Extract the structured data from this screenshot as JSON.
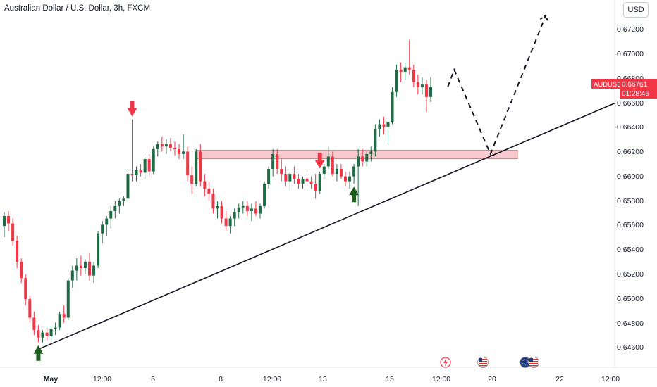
{
  "header": {
    "title": "Australian Dollar / U.S. Dollar, 3h, FXCM",
    "currency_button": "USD"
  },
  "price_tag": {
    "symbol": "AUDUSD",
    "price": "0.66761",
    "countdown": "01:28:46",
    "bg_color": "#f23645"
  },
  "colors": {
    "up": "#1f6b45",
    "down": "#f23645",
    "zone_fill": "#f4b7bd",
    "zone_border": "#e57373",
    "arrow_down": "#f23645",
    "arrow_up": "#1b5e20"
  },
  "event_icons": [
    "flash-icon",
    "us-flag-icon",
    "eu-us-flags-icon"
  ],
  "chart_data": {
    "type": "candlestick",
    "title": "Australian Dollar / U.S. Dollar, 3h, FXCM",
    "y_axis": {
      "range": [
        0.645,
        0.6736
      ],
      "ticks": [
        "0.64600",
        "0.64800",
        "0.65000",
        "0.65200",
        "0.65400",
        "0.65600",
        "0.65800",
        "0.66000",
        "0.66200",
        "0.66400",
        "0.66600",
        "0.66800",
        "0.67000",
        "0.67200"
      ]
    },
    "x_axis": {
      "ticks": [
        "May",
        "12:00",
        "6",
        "12:00",
        "8",
        "12:00",
        "13",
        "12:00",
        "15",
        "12:00",
        "20",
        "22",
        "12:00"
      ]
    },
    "candles": [
      [
        0.6564,
        0.6575,
        0.6555,
        0.6572
      ],
      [
        0.6572,
        0.6576,
        0.656,
        0.6566
      ],
      [
        0.6566,
        0.657,
        0.6548,
        0.6552
      ],
      [
        0.6552,
        0.6556,
        0.653,
        0.6535
      ],
      [
        0.6535,
        0.6538,
        0.6518,
        0.6522
      ],
      [
        0.6522,
        0.6525,
        0.65,
        0.6505
      ],
      [
        0.6505,
        0.6508,
        0.6486,
        0.649
      ],
      [
        0.649,
        0.6495,
        0.6476,
        0.648
      ],
      [
        0.648,
        0.6484,
        0.647,
        0.6474
      ],
      [
        0.6474,
        0.648,
        0.647,
        0.6478
      ],
      [
        0.6478,
        0.6482,
        0.6472,
        0.6475
      ],
      [
        0.6475,
        0.6483,
        0.6472,
        0.6481
      ],
      [
        0.6481,
        0.6486,
        0.6476,
        0.6482
      ],
      [
        0.6482,
        0.6495,
        0.648,
        0.6493
      ],
      [
        0.6493,
        0.65,
        0.6486,
        0.649
      ],
      [
        0.649,
        0.6522,
        0.6488,
        0.652
      ],
      [
        0.652,
        0.6532,
        0.6514,
        0.6528
      ],
      [
        0.6528,
        0.6538,
        0.652,
        0.6532
      ],
      [
        0.6532,
        0.654,
        0.6524,
        0.653
      ],
      [
        0.653,
        0.6537,
        0.6525,
        0.6535
      ],
      [
        0.6535,
        0.6542,
        0.652,
        0.6524
      ],
      [
        0.6524,
        0.6535,
        0.6518,
        0.6532
      ],
      [
        0.6532,
        0.656,
        0.653,
        0.6558
      ],
      [
        0.6558,
        0.6568,
        0.655,
        0.6565
      ],
      [
        0.6565,
        0.6572,
        0.6556,
        0.657
      ],
      [
        0.657,
        0.658,
        0.6562,
        0.6576
      ],
      [
        0.6576,
        0.6584,
        0.657,
        0.658
      ],
      [
        0.658,
        0.6586,
        0.6574,
        0.6584
      ],
      [
        0.6584,
        0.6588,
        0.658,
        0.6586
      ],
      [
        0.6586,
        0.661,
        0.6584,
        0.6606
      ],
      [
        0.6606,
        0.665,
        0.66,
        0.6605
      ],
      [
        0.6605,
        0.6612,
        0.66,
        0.6609
      ],
      [
        0.6609,
        0.6614,
        0.6604,
        0.6607
      ],
      [
        0.6607,
        0.662,
        0.6602,
        0.6618
      ],
      [
        0.6618,
        0.6622,
        0.6604,
        0.6608
      ],
      [
        0.6608,
        0.6628,
        0.6606,
        0.6626
      ],
      [
        0.6626,
        0.6632,
        0.662,
        0.663
      ],
      [
        0.663,
        0.6636,
        0.6624,
        0.6628
      ],
      [
        0.6628,
        0.6634,
        0.6622,
        0.663
      ],
      [
        0.663,
        0.6635,
        0.6624,
        0.6627
      ],
      [
        0.6627,
        0.6632,
        0.6621,
        0.6626
      ],
      [
        0.6626,
        0.663,
        0.6618,
        0.6622
      ],
      [
        0.6622,
        0.6638,
        0.6618,
        0.6624
      ],
      [
        0.6624,
        0.6628,
        0.66,
        0.6605
      ],
      [
        0.6605,
        0.6612,
        0.659,
        0.6598
      ],
      [
        0.6598,
        0.6626,
        0.6596,
        0.6624
      ],
      [
        0.6624,
        0.663,
        0.6596,
        0.66
      ],
      [
        0.66,
        0.6606,
        0.6588,
        0.6594
      ],
      [
        0.6594,
        0.66,
        0.6584,
        0.659
      ],
      [
        0.659,
        0.6594,
        0.6574,
        0.6578
      ],
      [
        0.6578,
        0.6584,
        0.657,
        0.658
      ],
      [
        0.658,
        0.6584,
        0.6566,
        0.657
      ],
      [
        0.657,
        0.6576,
        0.656,
        0.6564
      ],
      [
        0.6564,
        0.6572,
        0.6558,
        0.657
      ],
      [
        0.657,
        0.6578,
        0.6564,
        0.6575
      ],
      [
        0.6575,
        0.6582,
        0.657,
        0.6579
      ],
      [
        0.6579,
        0.6584,
        0.6574,
        0.658
      ],
      [
        0.658,
        0.6584,
        0.6572,
        0.6576
      ],
      [
        0.6576,
        0.6582,
        0.6568,
        0.6578
      ],
      [
        0.6578,
        0.6584,
        0.6572,
        0.6574
      ],
      [
        0.6574,
        0.6582,
        0.657,
        0.658
      ],
      [
        0.658,
        0.66,
        0.6578,
        0.6598
      ],
      [
        0.6598,
        0.6612,
        0.6594,
        0.661
      ],
      [
        0.661,
        0.6626,
        0.6604,
        0.6622
      ],
      [
        0.6622,
        0.6626,
        0.6606,
        0.661
      ],
      [
        0.661,
        0.6618,
        0.66,
        0.6606
      ],
      [
        0.6606,
        0.6612,
        0.6596,
        0.66
      ],
      [
        0.66,
        0.6608,
        0.6592,
        0.6606
      ],
      [
        0.6606,
        0.6612,
        0.6598,
        0.6602
      ],
      [
        0.6602,
        0.6606,
        0.6594,
        0.6598
      ],
      [
        0.6598,
        0.6604,
        0.6594,
        0.6602
      ],
      [
        0.6602,
        0.6606,
        0.6596,
        0.66
      ],
      [
        0.66,
        0.6604,
        0.6594,
        0.6598
      ],
      [
        0.6598,
        0.6606,
        0.6586,
        0.6592
      ],
      [
        0.6592,
        0.6608,
        0.659,
        0.6606
      ],
      [
        0.6606,
        0.6614,
        0.6602,
        0.6612
      ],
      [
        0.6612,
        0.6628,
        0.661,
        0.662
      ],
      [
        0.662,
        0.6624,
        0.6604,
        0.6606
      ],
      [
        0.6606,
        0.6614,
        0.66,
        0.661
      ],
      [
        0.661,
        0.6614,
        0.6602,
        0.6604
      ],
      [
        0.6604,
        0.6608,
        0.6596,
        0.66
      ],
      [
        0.66,
        0.6608,
        0.6594,
        0.6604
      ],
      [
        0.6604,
        0.6614,
        0.6598,
        0.6612
      ],
      [
        0.6612,
        0.6626,
        0.658,
        0.662
      ],
      [
        0.662,
        0.6626,
        0.6612,
        0.6616
      ],
      [
        0.6616,
        0.6624,
        0.6612,
        0.6622
      ],
      [
        0.6622,
        0.6628,
        0.6616,
        0.6624
      ],
      [
        0.6624,
        0.6646,
        0.662,
        0.6642
      ],
      [
        0.6642,
        0.665,
        0.6636,
        0.6646
      ],
      [
        0.6646,
        0.6652,
        0.6638,
        0.6644
      ],
      [
        0.6644,
        0.665,
        0.6632,
        0.6648
      ],
      [
        0.6648,
        0.6676,
        0.6646,
        0.6672
      ],
      [
        0.6672,
        0.6694,
        0.6668,
        0.669
      ],
      [
        0.669,
        0.6696,
        0.668,
        0.6688
      ],
      [
        0.6688,
        0.6696,
        0.6682,
        0.6692
      ],
      [
        0.6692,
        0.6714,
        0.6686,
        0.669
      ],
      [
        0.669,
        0.6694,
        0.6676,
        0.668
      ],
      [
        0.668,
        0.6686,
        0.667,
        0.6676
      ],
      [
        0.6676,
        0.6684,
        0.667,
        0.6678
      ],
      [
        0.6678,
        0.6682,
        0.6656,
        0.6668
      ],
      [
        0.6668,
        0.6684,
        0.6664,
        0.6676
      ]
    ],
    "support_zone": {
      "low": 0.6619,
      "high": 0.6625
    },
    "trendline": {
      "from_candle": 8,
      "from_price": 0.6465,
      "to_price": 0.6663
    },
    "projection_path": [
      {
        "candle": 104,
        "price": 0.66761
      },
      {
        "candle": 105.5,
        "price": 0.669
      },
      {
        "candle": 114,
        "price": 0.6622
      },
      {
        "candle": 127,
        "price": 0.6734
      }
    ],
    "annotations": [
      {
        "type": "arrow-down",
        "candle": 30
      },
      {
        "type": "arrow-down",
        "candle": 74
      },
      {
        "type": "arrow-up",
        "candle": 8
      },
      {
        "type": "arrow-up",
        "candle": 82
      }
    ]
  }
}
